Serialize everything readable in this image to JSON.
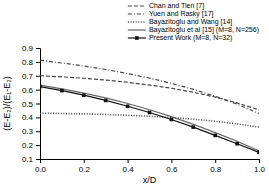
{
  "chart_data": {
    "type": "line",
    "xlabel": "x/D",
    "ylabel": "(E-E₂)/(E₁-E₂)",
    "x": [
      0.0,
      0.1,
      0.2,
      0.3,
      0.4,
      0.5,
      0.6,
      0.7,
      0.8,
      0.9,
      1.0
    ],
    "xlim": [
      0,
      1.0
    ],
    "ylim": [
      0.1,
      0.9
    ],
    "xticks": [
      {
        "value": 0,
        "label": "0.0"
      },
      0.2,
      0.4,
      0.6,
      0.8,
      {
        "value": 1.0,
        "label": "1.0"
      }
    ],
    "yticks": [
      0.1,
      0.2,
      0.3,
      0.4,
      0.5,
      0.6,
      0.7,
      0.8,
      0.9
    ],
    "legend": "upper right",
    "series": [
      {
        "name": "Chan and Tien [7]",
        "color": "#444444",
        "line_style": "dashed",
        "values": [
          0.7,
          0.692,
          0.682,
          0.669,
          0.653,
          0.633,
          0.61,
          0.581,
          0.546,
          0.504,
          0.454
        ]
      },
      {
        "name": "Yuen and Rasky [17]",
        "color": "#444444",
        "line_style": "dashdot",
        "values": [
          0.812,
          0.792,
          0.77,
          0.745,
          0.716,
          0.683,
          0.645,
          0.602,
          0.552,
          0.495,
          0.428
        ]
      },
      {
        "name": "Bayazitoglu and Wang [14]",
        "color": "#444444",
        "line_style": "dotted",
        "values": [
          0.43,
          0.428,
          0.425,
          0.421,
          0.415,
          0.408,
          0.399,
          0.387,
          0.372,
          0.353,
          0.33
        ]
      },
      {
        "name": "Bayazitoglu et al [15] (M=8, N=256)",
        "color": "#666666",
        "line_style": "solid",
        "values": [
          0.632,
          0.605,
          0.575,
          0.54,
          0.5,
          0.455,
          0.405,
          0.35,
          0.29,
          0.228,
          0.158
        ]
      },
      {
        "name": "Present Work (M=8, N=32)",
        "color": "#111111",
        "line_style": "solid",
        "marker": "square",
        "values": [
          0.622,
          0.593,
          0.56,
          0.522,
          0.48,
          0.435,
          0.385,
          0.33,
          0.27,
          0.21,
          0.148
        ]
      }
    ]
  }
}
